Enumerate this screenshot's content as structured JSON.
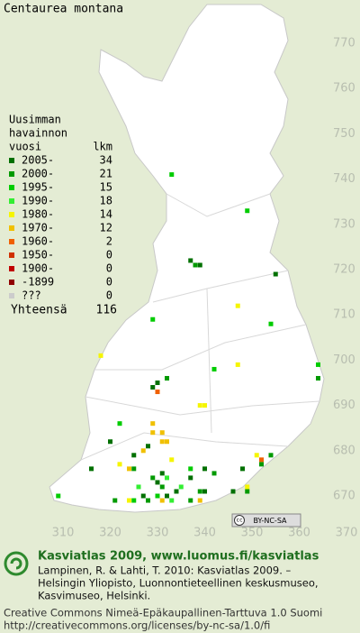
{
  "title": "Centaurea montana",
  "map": {
    "xlim": [
      310,
      370
    ],
    "ylim": [
      670,
      770
    ],
    "xticks": [
      310,
      320,
      330,
      340,
      350,
      360,
      370
    ],
    "yticks": [
      670,
      680,
      690,
      700,
      710,
      720,
      730,
      740,
      750,
      760,
      770
    ]
  },
  "legend": {
    "heading": [
      "Uusimman",
      "havainnon",
      "vuosi"
    ],
    "count_heading": "lkm",
    "rows": [
      {
        "label": "2005-",
        "count": 34,
        "color": "#007000",
        "points": [
          [
            355,
            719
          ],
          [
            339,
            721
          ],
          [
            337,
            722
          ],
          [
            330,
            695
          ],
          [
            329,
            694
          ],
          [
            320,
            682
          ],
          [
            328,
            681
          ],
          [
            325,
            679
          ],
          [
            331,
            675
          ],
          [
            337,
            674
          ],
          [
            334,
            671
          ],
          [
            330,
            673
          ],
          [
            332,
            670
          ],
          [
            327,
            670
          ],
          [
            340,
            671
          ],
          [
            346,
            671
          ],
          [
            348,
            676
          ],
          [
            340,
            676
          ],
          [
            316,
            676
          ]
        ]
      },
      {
        "label": "2000-",
        "count": 21,
        "color": "#009a00",
        "points": [
          [
            338,
            721
          ],
          [
            364,
            696
          ],
          [
            332,
            696
          ],
          [
            329,
            674
          ],
          [
            331,
            672
          ],
          [
            337,
            669
          ],
          [
            339,
            671
          ],
          [
            328,
            669
          ],
          [
            342,
            675
          ],
          [
            349,
            671
          ],
          [
            352,
            677
          ],
          [
            354,
            679
          ],
          [
            321,
            669
          ],
          [
            325,
            676
          ]
        ]
      },
      {
        "label": "1995-",
        "count": 15,
        "color": "#00cc00",
        "points": [
          [
            333,
            741
          ],
          [
            349,
            733
          ],
          [
            329,
            709
          ],
          [
            342,
            698
          ],
          [
            354,
            708
          ],
          [
            364,
            699
          ],
          [
            322,
            686
          ],
          [
            337,
            676
          ],
          [
            330,
            670
          ],
          [
            309,
            670
          ],
          [
            325,
            669
          ]
        ]
      },
      {
        "label": "1990-",
        "count": 18,
        "color": "#33ee33",
        "points": [
          [
            333,
            669
          ],
          [
            335,
            672
          ],
          [
            326,
            672
          ],
          [
            332,
            674
          ]
        ]
      },
      {
        "label": "1980-",
        "count": 14,
        "color": "#f5f500",
        "points": [
          [
            347,
            712
          ],
          [
            318,
            701
          ],
          [
            347,
            699
          ],
          [
            339,
            690
          ],
          [
            340,
            690
          ],
          [
            351,
            679
          ],
          [
            349,
            672
          ],
          [
            324,
            669
          ],
          [
            322,
            677
          ],
          [
            333,
            678
          ]
        ]
      },
      {
        "label": "1970-",
        "count": 12,
        "color": "#f0c000",
        "points": [
          [
            329,
            686
          ],
          [
            329,
            684
          ],
          [
            331,
            684
          ],
          [
            331,
            682
          ],
          [
            327,
            680
          ],
          [
            332,
            682
          ],
          [
            324,
            676
          ],
          [
            331,
            669
          ],
          [
            339,
            669
          ]
        ]
      },
      {
        "label": "1960-",
        "count": 2,
        "color": "#f06000",
        "points": [
          [
            330,
            693
          ],
          [
            352,
            678
          ]
        ]
      },
      {
        "label": "1950-",
        "count": 0,
        "color": "#d03000",
        "points": []
      },
      {
        "label": "1900-",
        "count": 0,
        "color": "#c00000",
        "points": []
      },
      {
        "label": "-1899",
        "count": 0,
        "color": "#900000",
        "points": []
      },
      {
        "label": "???",
        "count": 0,
        "color": "#cccccc",
        "points": []
      }
    ],
    "total_label": "Yhteensä",
    "total": 116
  },
  "badge": "BY-NC-SA",
  "footer": {
    "headline": "Kasviatlas 2009, www.luomus.fi/kasviatlas",
    "citation": [
      "Lampinen, R. & Lahti, T. 2010: Kasviatlas 2009. –",
      "Helsingin Yliopisto, Luonnontieteellinen keskusmuseo,",
      "Kasvimuseo, Helsinki."
    ],
    "license": [
      "Creative Commons Nimeä-Epäkaupallinen-Tarttuva 1.0 Suomi",
      "http://creativecommons.org/licenses/by-nc-sa/1.0/fi"
    ]
  }
}
